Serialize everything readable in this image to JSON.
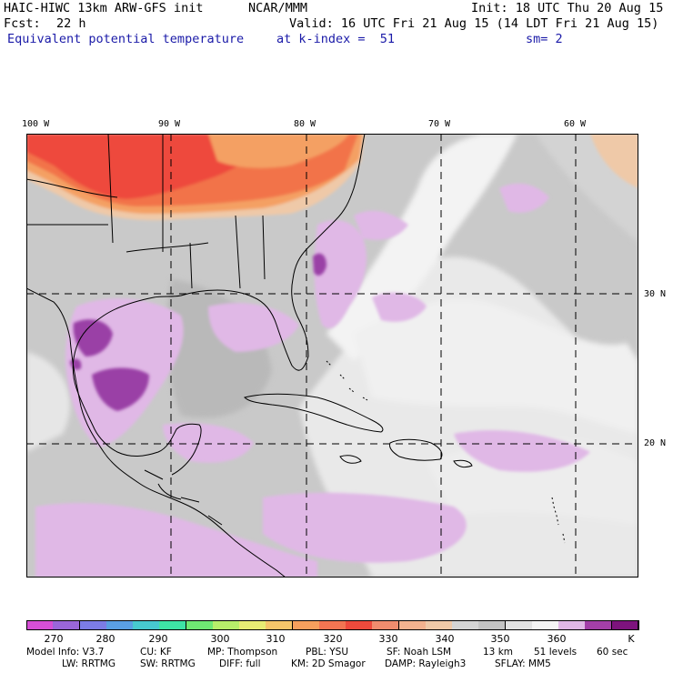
{
  "header": {
    "model_title": "HAIC-HIWC 13km ARW-GFS init",
    "org": "NCAR/MMM",
    "init": "Init: 18 UTC Thu 20 Aug 15",
    "fcst_label": "Fcst:",
    "fcst_value": "22 h",
    "valid": "Valid: 16 UTC Fri 21 Aug 15 (14 LDT Fri 21 Aug 15)",
    "field": "Equivalent potential temperature",
    "level": "at k-index =  51",
    "smooth": "sm= 2"
  },
  "map": {
    "lon_labels": [
      "100 W",
      "90 W",
      "80 W",
      "70 W",
      "60 W"
    ],
    "lat_labels": [
      "30 N",
      "20 N"
    ],
    "colors": {
      "land_gray": "#c6c6c6",
      "light_gray": "#d9d9d9",
      "white_360": "#f2f2f2",
      "lilac": "#e0b8e6",
      "purple": "#9a3fa6",
      "red": "#ee4a3c",
      "orange_red": "#f2734a",
      "orange": "#f4a064",
      "tan": "#efc9a8"
    }
  },
  "colorbar": {
    "colors": [
      "#d64fd6",
      "#9a66d9",
      "#7c7ce6",
      "#5a9fe3",
      "#47c9cf",
      "#3ee3a5",
      "#6fe873",
      "#b7ee6a",
      "#e7ec74",
      "#f5c56a",
      "#f6a05d",
      "#f27552",
      "#ee4a3c",
      "#ef8c6e",
      "#f3b28f",
      "#efc9a8",
      "#d4d4d4",
      "#c4c4c4",
      "#e2e2e2",
      "#f4f4f4",
      "#e0b8e6",
      "#a33fa8",
      "#7d137d"
    ],
    "labels": [
      "270",
      "280",
      "290",
      "300",
      "310",
      "320",
      "330",
      "340",
      "350",
      "360"
    ],
    "unit": "K"
  },
  "model_info": {
    "line1": [
      "Model Info: V3.7",
      "CU: KF",
      "MP: Thompson",
      "PBL: YSU",
      "SF: Noah LSM",
      "13 km",
      "51 levels",
      "60 sec"
    ],
    "line2": [
      "LW: RRTMG",
      "SW: RRTMG",
      "DIFF: full",
      "KM: 2D Smagor",
      "DAMP: Rayleigh3",
      "SFLAY: MM5"
    ]
  }
}
